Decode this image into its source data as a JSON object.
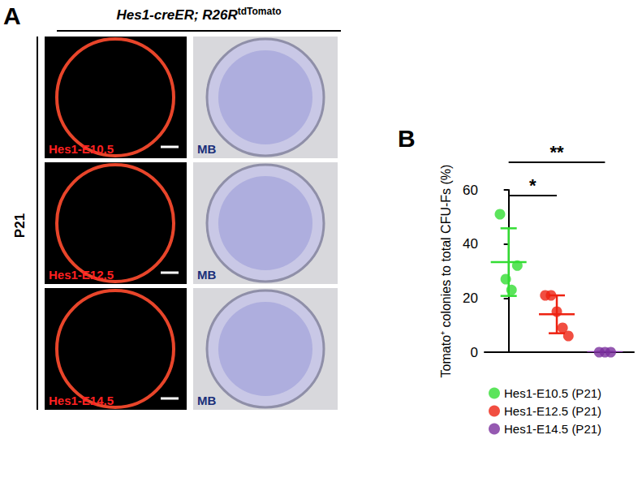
{
  "panel_a": {
    "label": "A",
    "header": {
      "text": "Hes1-creER; R26R",
      "superscript": "tdTomato"
    },
    "timepoint": "P21",
    "rows": [
      {
        "label": "Hes1-E10.5",
        "stain": "MB"
      },
      {
        "label": "Hes1-E12.5",
        "stain": "MB"
      },
      {
        "label": "Hes1-E14.5",
        "stain": "MB"
      }
    ]
  },
  "chart_data": {
    "type": "scatter",
    "title": "B",
    "y_label": "Tomato⁺ colonies to total CFU-Fs (%)",
    "series": [
      {
        "name": "Hes1-E10.5 (P21)",
        "color": "#33dd33",
        "values": [
          51,
          27,
          23,
          32
        ],
        "mean": 33.3,
        "sd": 12.5
      },
      {
        "name": "Hes1-E12.5 (P21)",
        "color": "#ee2211",
        "values": [
          21,
          21,
          15,
          9,
          6
        ],
        "mean": 14,
        "sd": 7
      },
      {
        "name": "Hes1-E14.5 (P21)",
        "color": "#7b2f9e",
        "values": [
          0,
          0,
          0
        ],
        "mean": 0,
        "sd": 0
      }
    ],
    "comparisons": [
      {
        "from": "Hes1-E10.5 (P21)",
        "to": "Hes1-E12.5 (P21)",
        "label": "*"
      },
      {
        "from": "Hes1-E10.5 (P21)",
        "to": "Hes1-E14.5 (P21)",
        "label": "**"
      }
    ],
    "ylim": [
      0,
      60
    ],
    "yticks": [
      0,
      20,
      40,
      60
    ],
    "tick_labels": "y",
    "grid": false,
    "legend": "bottom",
    "marker": "circle"
  }
}
